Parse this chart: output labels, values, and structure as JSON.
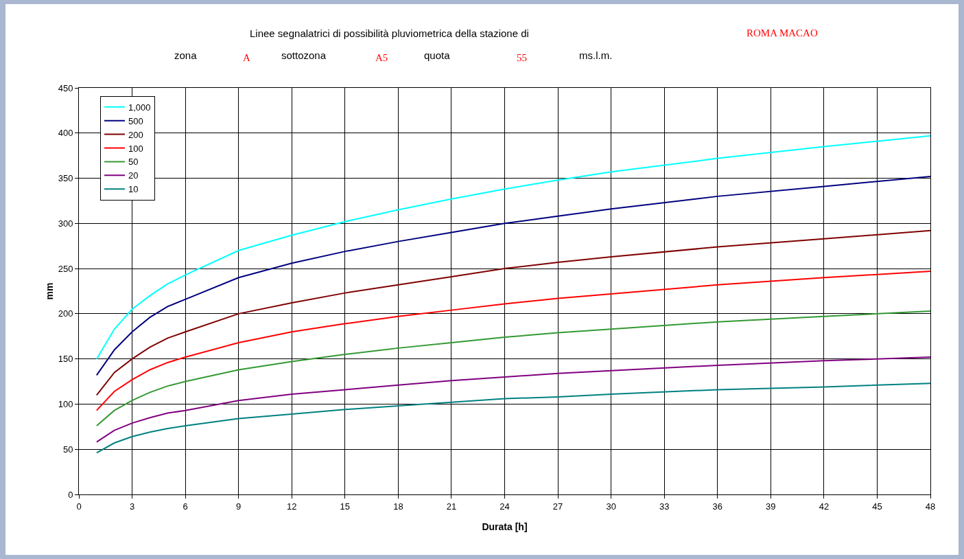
{
  "chart_data": {
    "type": "line",
    "title": "Linee segnalatrici di possibilità pluviometrica della stazione di",
    "annotations": [
      "ROMA MACAO",
      "zona",
      "A",
      "sottozona",
      "A5",
      "quota",
      "55",
      "ms.l.m."
    ],
    "xlabel": "Durata [h]",
    "ylabel": "mm",
    "x": [
      1,
      2,
      3,
      4,
      5,
      6,
      9,
      12,
      15,
      18,
      21,
      24,
      27,
      30,
      36,
      42,
      48
    ],
    "series": [
      {
        "name": "1,000",
        "color": "#00ffff",
        "values": [
          150,
          183,
          205,
          220,
          233,
          243,
          270,
          287,
          302,
          315,
          327,
          338,
          348,
          357,
          372,
          385,
          397
        ]
      },
      {
        "name": "500",
        "color": "#000080",
        "values": [
          132,
          160,
          180,
          196,
          208,
          216,
          240,
          256,
          269,
          280,
          290,
          300,
          308,
          316,
          330,
          341,
          352
        ]
      },
      {
        "name": "200",
        "color": "#800000",
        "values": [
          110,
          135,
          150,
          163,
          173,
          180,
          200,
          212,
          223,
          232,
          241,
          250,
          257,
          263,
          274,
          283,
          292
        ]
      },
      {
        "name": "100",
        "color": "#ff0000",
        "values": [
          93,
          114,
          127,
          138,
          146,
          152,
          168,
          180,
          189,
          197,
          204,
          211,
          217,
          222,
          232,
          240,
          247
        ]
      },
      {
        "name": "50",
        "color": "#339933",
        "values": [
          76,
          93,
          104,
          113,
          120,
          125,
          138,
          147,
          155,
          162,
          168,
          174,
          179,
          183,
          191,
          197,
          203
        ]
      },
      {
        "name": "20",
        "color": "#800080",
        "values": [
          58,
          71,
          79,
          85,
          90,
          93,
          104,
          111,
          116,
          121,
          126,
          130,
          134,
          137,
          143,
          148,
          152
        ]
      },
      {
        "name": "10",
        "color": "#008080",
        "values": [
          46,
          57,
          64,
          69,
          73,
          76,
          84,
          89,
          94,
          98,
          102,
          106,
          108,
          111,
          116,
          119,
          123
        ]
      }
    ],
    "xlim": [
      0,
      48
    ],
    "xticks": [
      0,
      3,
      6,
      9,
      12,
      15,
      18,
      21,
      24,
      27,
      30,
      33,
      36,
      39,
      42,
      45,
      48
    ],
    "ylim": [
      0,
      450
    ],
    "yticks": [
      0,
      50,
      100,
      150,
      200,
      250,
      300,
      350,
      400,
      450
    ],
    "grid": true,
    "legend": "top left",
    "marker": "none",
    "line_style": "solid"
  }
}
